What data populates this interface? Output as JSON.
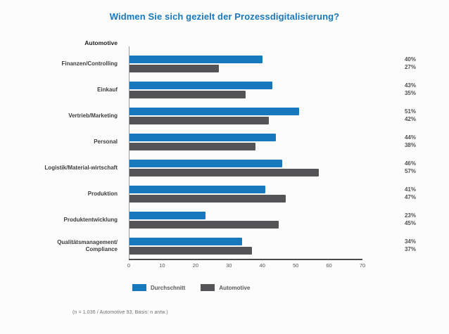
{
  "title": "Widmen Sie sich gezielt der Prozessdigitalisierung?",
  "group_header": "Automotive",
  "chart_data": {
    "type": "bar",
    "orientation": "horizontal",
    "title": "Widmen Sie sich gezielt der Prozessdigitalisierung?",
    "categories": [
      "Finanzen/Controlling",
      "Einkauf",
      "Vertrieb/Marketing",
      "Personal",
      "Logistik/Material-wirtschaft",
      "Produktion",
      "Produktentwicklung",
      "Qualitätsmanagement/ Compliance"
    ],
    "series": [
      {
        "name": "Durchschnitt",
        "color": "#1878be",
        "values": [
          40,
          43,
          51,
          44,
          46,
          41,
          23,
          34
        ]
      },
      {
        "name": "Automotive",
        "color": "#545456",
        "values": [
          27,
          35,
          42,
          38,
          57,
          47,
          45,
          37
        ]
      }
    ],
    "value_labels": [
      [
        "40%",
        "27%"
      ],
      [
        "43%",
        "35%"
      ],
      [
        "51%",
        "42%"
      ],
      [
        "44%",
        "38%"
      ],
      [
        "46%",
        "57%"
      ],
      [
        "41%",
        "47%"
      ],
      [
        "23%",
        "45%"
      ],
      [
        "34%",
        "37%"
      ]
    ],
    "xlim": [
      0,
      70
    ],
    "x_ticks": [
      0,
      10,
      20,
      30,
      40,
      50,
      60,
      70
    ],
    "grid": false,
    "legend_position": "bottom"
  },
  "footnote": "(n = 1.036 / Automotive 93, Basis: n antw.)"
}
